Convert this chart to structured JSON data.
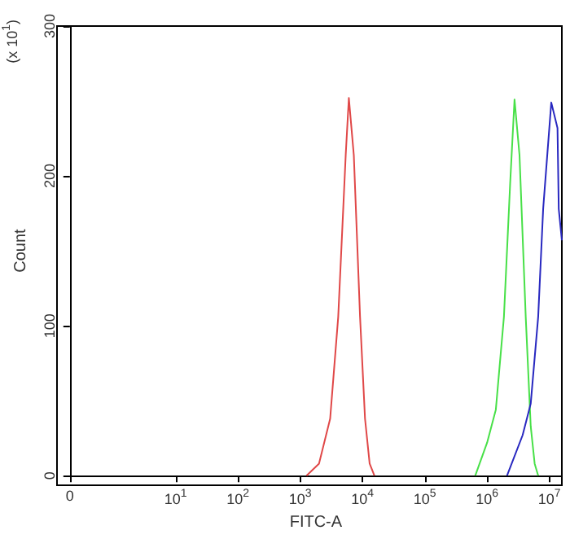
{
  "chart_data": {
    "type": "line",
    "xlabel": "FITC-A",
    "ylabel": "Count",
    "annotations": [
      "(x 10$^{1}$)"
    ],
    "log": "x",
    "xlim": [
      0.2,
      15850000
    ],
    "ylim": [
      0,
      300
    ],
    "yticks": [
      0,
      100,
      200,
      300
    ],
    "xticks": [
      {
        "value": 0.2,
        "label": "0"
      },
      {
        "value": 10,
        "label": "10$^{1}$"
      },
      {
        "value": 100,
        "label": "10$^{2}$"
      },
      {
        "value": 1000,
        "label": "10$^{3}$"
      },
      {
        "value": 10000,
        "label": "10$^{4}$"
      },
      {
        "value": 100000,
        "label": "10$^{5}$"
      },
      {
        "value": 1000000,
        "label": "10$^{6}$"
      },
      {
        "value": 10000000,
        "label": "10$^{7}$"
      }
    ],
    "grid": false,
    "marker": "none",
    "line_style": "solid",
    "series": [
      {
        "color": "#e04848",
        "x": [
          1260,
          2000,
          3020,
          4070,
          5370,
          6030,
          7240,
          9120,
          10960,
          13000,
          15490
        ],
        "values": [
          0,
          8,
          38,
          106,
          214,
          252,
          214,
          106,
          38,
          8,
          0
        ]
      },
      {
        "color": "#48e048",
        "x": [
          645700,
          1000000,
          1380000,
          1862000,
          2344000,
          2754000,
          3311000,
          4169000,
          5012000,
          5800000,
          6607000
        ],
        "values": [
          0,
          22,
          44,
          106,
          195,
          251,
          214,
          106,
          33,
          8,
          0
        ]
      },
      {
        "color": "#2828c0",
        "x": [
          2089000,
          3715000,
          5012000,
          6607000,
          7943000,
          10720000,
          13490000,
          14130000,
          15850000
        ],
        "values": [
          0,
          27,
          48,
          106,
          178,
          249,
          232,
          178,
          157
        ]
      }
    ]
  }
}
